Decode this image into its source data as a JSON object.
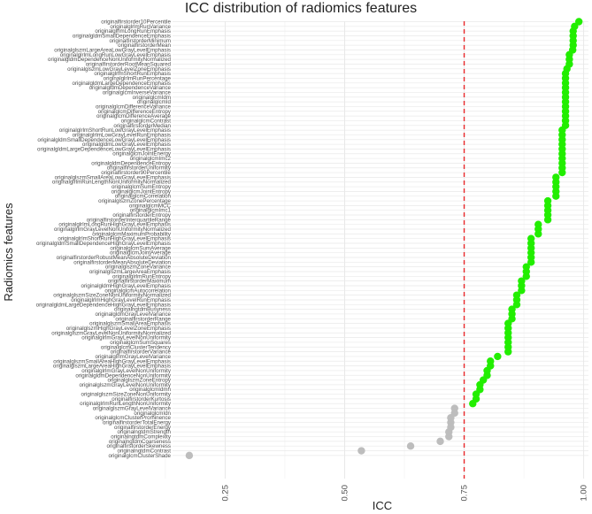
{
  "chart_data": {
    "type": "scatter",
    "title": "ICC distribution of radiomics features",
    "xlabel": "ICC",
    "ylabel": "Radiomics features",
    "xlim": [
      0.14,
      1.01
    ],
    "x_ticks": [
      "0.25",
      "0.50",
      "0.75",
      "1.00"
    ],
    "threshold": 0.75,
    "grid": true,
    "legend": "none",
    "colors": {
      "above_threshold": "#22ee00",
      "below_threshold": "#bdbdbd",
      "threshold_line": "#e8282a"
    },
    "series": [
      {
        "labels": [
          "originalfirstorder10Percentile",
          "originalglrlmRunVariance",
          "originalglrlmLongRunEmphasis",
          "originalgldmSmallDependenceEmphasis",
          "originalfirstorderMinimum",
          "originalfirstorderMean",
          "originalglszmLargeAreaLowGrayLevelEmphasis",
          "originalglrlmLongRunLowGrayLevelEmphasis",
          "originalgldmDependenceNonUniformityNormalized",
          "originalfirstorderRootMeanSquared",
          "originalglszmLowGrayLevelZoneEmphasis",
          "originalglrlmShortRunEmphasis",
          "originalglrlmRunPercentage",
          "originalgldmLargeDependenceEmphasis",
          "originalgldmDependenceVariance",
          "originalglcmInverseVariance",
          "originalglcmIdm",
          "originalglcmId",
          "originalglcmDifferenceVariance",
          "originalglcmDifferenceEntropy",
          "originalglcmDifferenceAverage",
          "originalglcmContrast",
          "originalfirstorderMedian",
          "originalglrlmShortRunLowGrayLevelEmphasis",
          "originalglrlmLowGrayLevelRunEmphasis",
          "originalgldmSmallDependenceLowGrayLevelEmphasis",
          "originalgldmLowGrayLevelEmphasis",
          "originalgldmLargeDependenceLowGrayLevelEmphasis",
          "originalglcmJointEnergy",
          "originalglcmImc2",
          "originalgldmDependenceEntropy",
          "originalfirstorderUniformity",
          "originalfirstorder90Percentile",
          "originalglszmSmallAreaLowGrayLevelEmphasis",
          "originalglrlmRunLengthNonUniformityNormalized",
          "originalglcmSumEntropy",
          "originalglcmJointEntropy",
          "originalglcmCorrelation",
          "originalglszmZonePercentage",
          "originalglcmMCC",
          "originalglcmImc1",
          "originalfirstorderEntropy",
          "originalfirstorderInterquartileRange",
          "originalglrlmLongRunHighGrayLevelEmphasis",
          "originalglrlmGrayLevelNonUniformityNormalized",
          "originalglcmMaximumProbability",
          "originalglrlmShortRunHighGrayLevelEmphasis",
          "originalgldmSmallDependenceHighGrayLevelEmphasis",
          "originalglcmSumAverage",
          "originalglcmJointAverage",
          "originalfirstorderRobustMeanAbsoluteDeviation",
          "originalfirstorderMeanAbsoluteDeviation",
          "originalglszmZoneVariance",
          "originalglszmLargeAreaEmphasis",
          "originalglrlmRunEntropy",
          "originalfirstorderMaximum",
          "originalgldmHighGrayLevelEmphasis",
          "originalglcmAutocorrelation",
          "originalglszmSizeZoneNonUniformityNormalized",
          "originalglrlmHighGrayLevelRunEmphasis",
          "originalgldmLargeDependenceHighGrayLevelEmphasis",
          "originalngtdmBusyness",
          "originalgldmGrayLevelVariance",
          "originalfirstorderRange",
          "originalglszmSmallAreaEmphasis",
          "originalglszmHighGrayLevelZoneEmphasis",
          "originalglszmGrayLevelNonUniformityNormalized",
          "originalglrlmGrayLevelNonUniformity",
          "originalglcmSumSquares",
          "originalglcmClusterTendency",
          "originalfirstorderVariance",
          "originalglrlmGrayLevelVariance",
          "originalglszmSmallAreaHighGrayLevelEmphasis",
          "originalglszmLargeAreaHighGrayLevelEmphasis",
          "originalglrlmGrayLevelNonUniformity",
          "originalgldmDependenceNonUniformity",
          "originalglszmZoneEntropy",
          "originalglszmGrayLevelNonUniformity",
          "originalglcmIdmn",
          "originalglszmSizeZoneNonUniformity",
          "originalfirstorderKurtosis",
          "originalglrlmRunLengthNonUniformity",
          "originalglszmGrayLevelVariance",
          "originalglcmIdn",
          "originalglcmClusterProminence",
          "originalfirstorderTotalEnergy",
          "originalfirstorderEnergy",
          "originalngtdmStrength",
          "originalngtdmComplexity",
          "originalngtdmCoarseness",
          "originalfirstorderSkewness",
          "originalngtdmContrast",
          "originalglcmClusterShade"
        ],
        "values": [
          0.99,
          0.981,
          0.978,
          0.978,
          0.978,
          0.978,
          0.977,
          0.97,
          0.97,
          0.97,
          0.965,
          0.962,
          0.962,
          0.962,
          0.962,
          0.962,
          0.962,
          0.962,
          0.962,
          0.962,
          0.962,
          0.962,
          0.962,
          0.955,
          0.955,
          0.955,
          0.955,
          0.955,
          0.955,
          0.955,
          0.955,
          0.955,
          0.955,
          0.942,
          0.942,
          0.942,
          0.942,
          0.942,
          0.925,
          0.925,
          0.925,
          0.925,
          0.925,
          0.905,
          0.905,
          0.905,
          0.89,
          0.89,
          0.89,
          0.89,
          0.89,
          0.89,
          0.88,
          0.88,
          0.88,
          0.87,
          0.87,
          0.87,
          0.86,
          0.86,
          0.86,
          0.85,
          0.85,
          0.85,
          0.842,
          0.842,
          0.842,
          0.842,
          0.842,
          0.842,
          0.842,
          0.82,
          0.805,
          0.805,
          0.798,
          0.798,
          0.79,
          0.783,
          0.783,
          0.775,
          0.775,
          0.768,
          0.73,
          0.73,
          0.722,
          0.722,
          0.722,
          0.718,
          0.718,
          0.7,
          0.638,
          0.535,
          0.175
        ]
      }
    ]
  }
}
